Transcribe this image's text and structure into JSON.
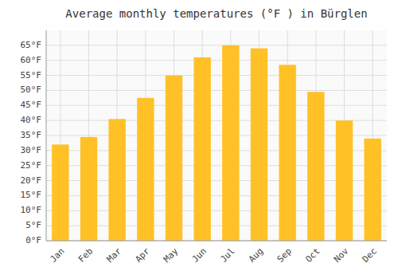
{
  "chart_data": {
    "type": "bar",
    "title": "Average monthly temperatures (°F ) in Bürglen",
    "categories": [
      "Jan",
      "Feb",
      "Mar",
      "Apr",
      "May",
      "Jun",
      "Jul",
      "Aug",
      "Sep",
      "Oct",
      "Nov",
      "Dec"
    ],
    "values": [
      32,
      34.5,
      40.5,
      47.5,
      55,
      61,
      65,
      64,
      58.5,
      49.5,
      40,
      34
    ],
    "color": "#FFC125",
    "ylim": [
      0,
      70
    ],
    "yticks": [
      {
        "value": 0,
        "label": "0°F"
      },
      {
        "value": 5,
        "label": "5°F"
      },
      {
        "value": 10,
        "label": "10°F"
      },
      {
        "value": 15,
        "label": "15°F"
      },
      {
        "value": 20,
        "label": "20°F"
      },
      {
        "value": 25,
        "label": "25°F"
      },
      {
        "value": 30,
        "label": "30°F"
      },
      {
        "value": 35,
        "label": "35°F"
      },
      {
        "value": 40,
        "label": "40°F"
      },
      {
        "value": 45,
        "label": "45°F"
      },
      {
        "value": 50,
        "label": "50°F"
      },
      {
        "value": 55,
        "label": "55°F"
      },
      {
        "value": 60,
        "label": "60°F"
      },
      {
        "value": 65,
        "label": "65°F"
      }
    ],
    "grid": true
  }
}
